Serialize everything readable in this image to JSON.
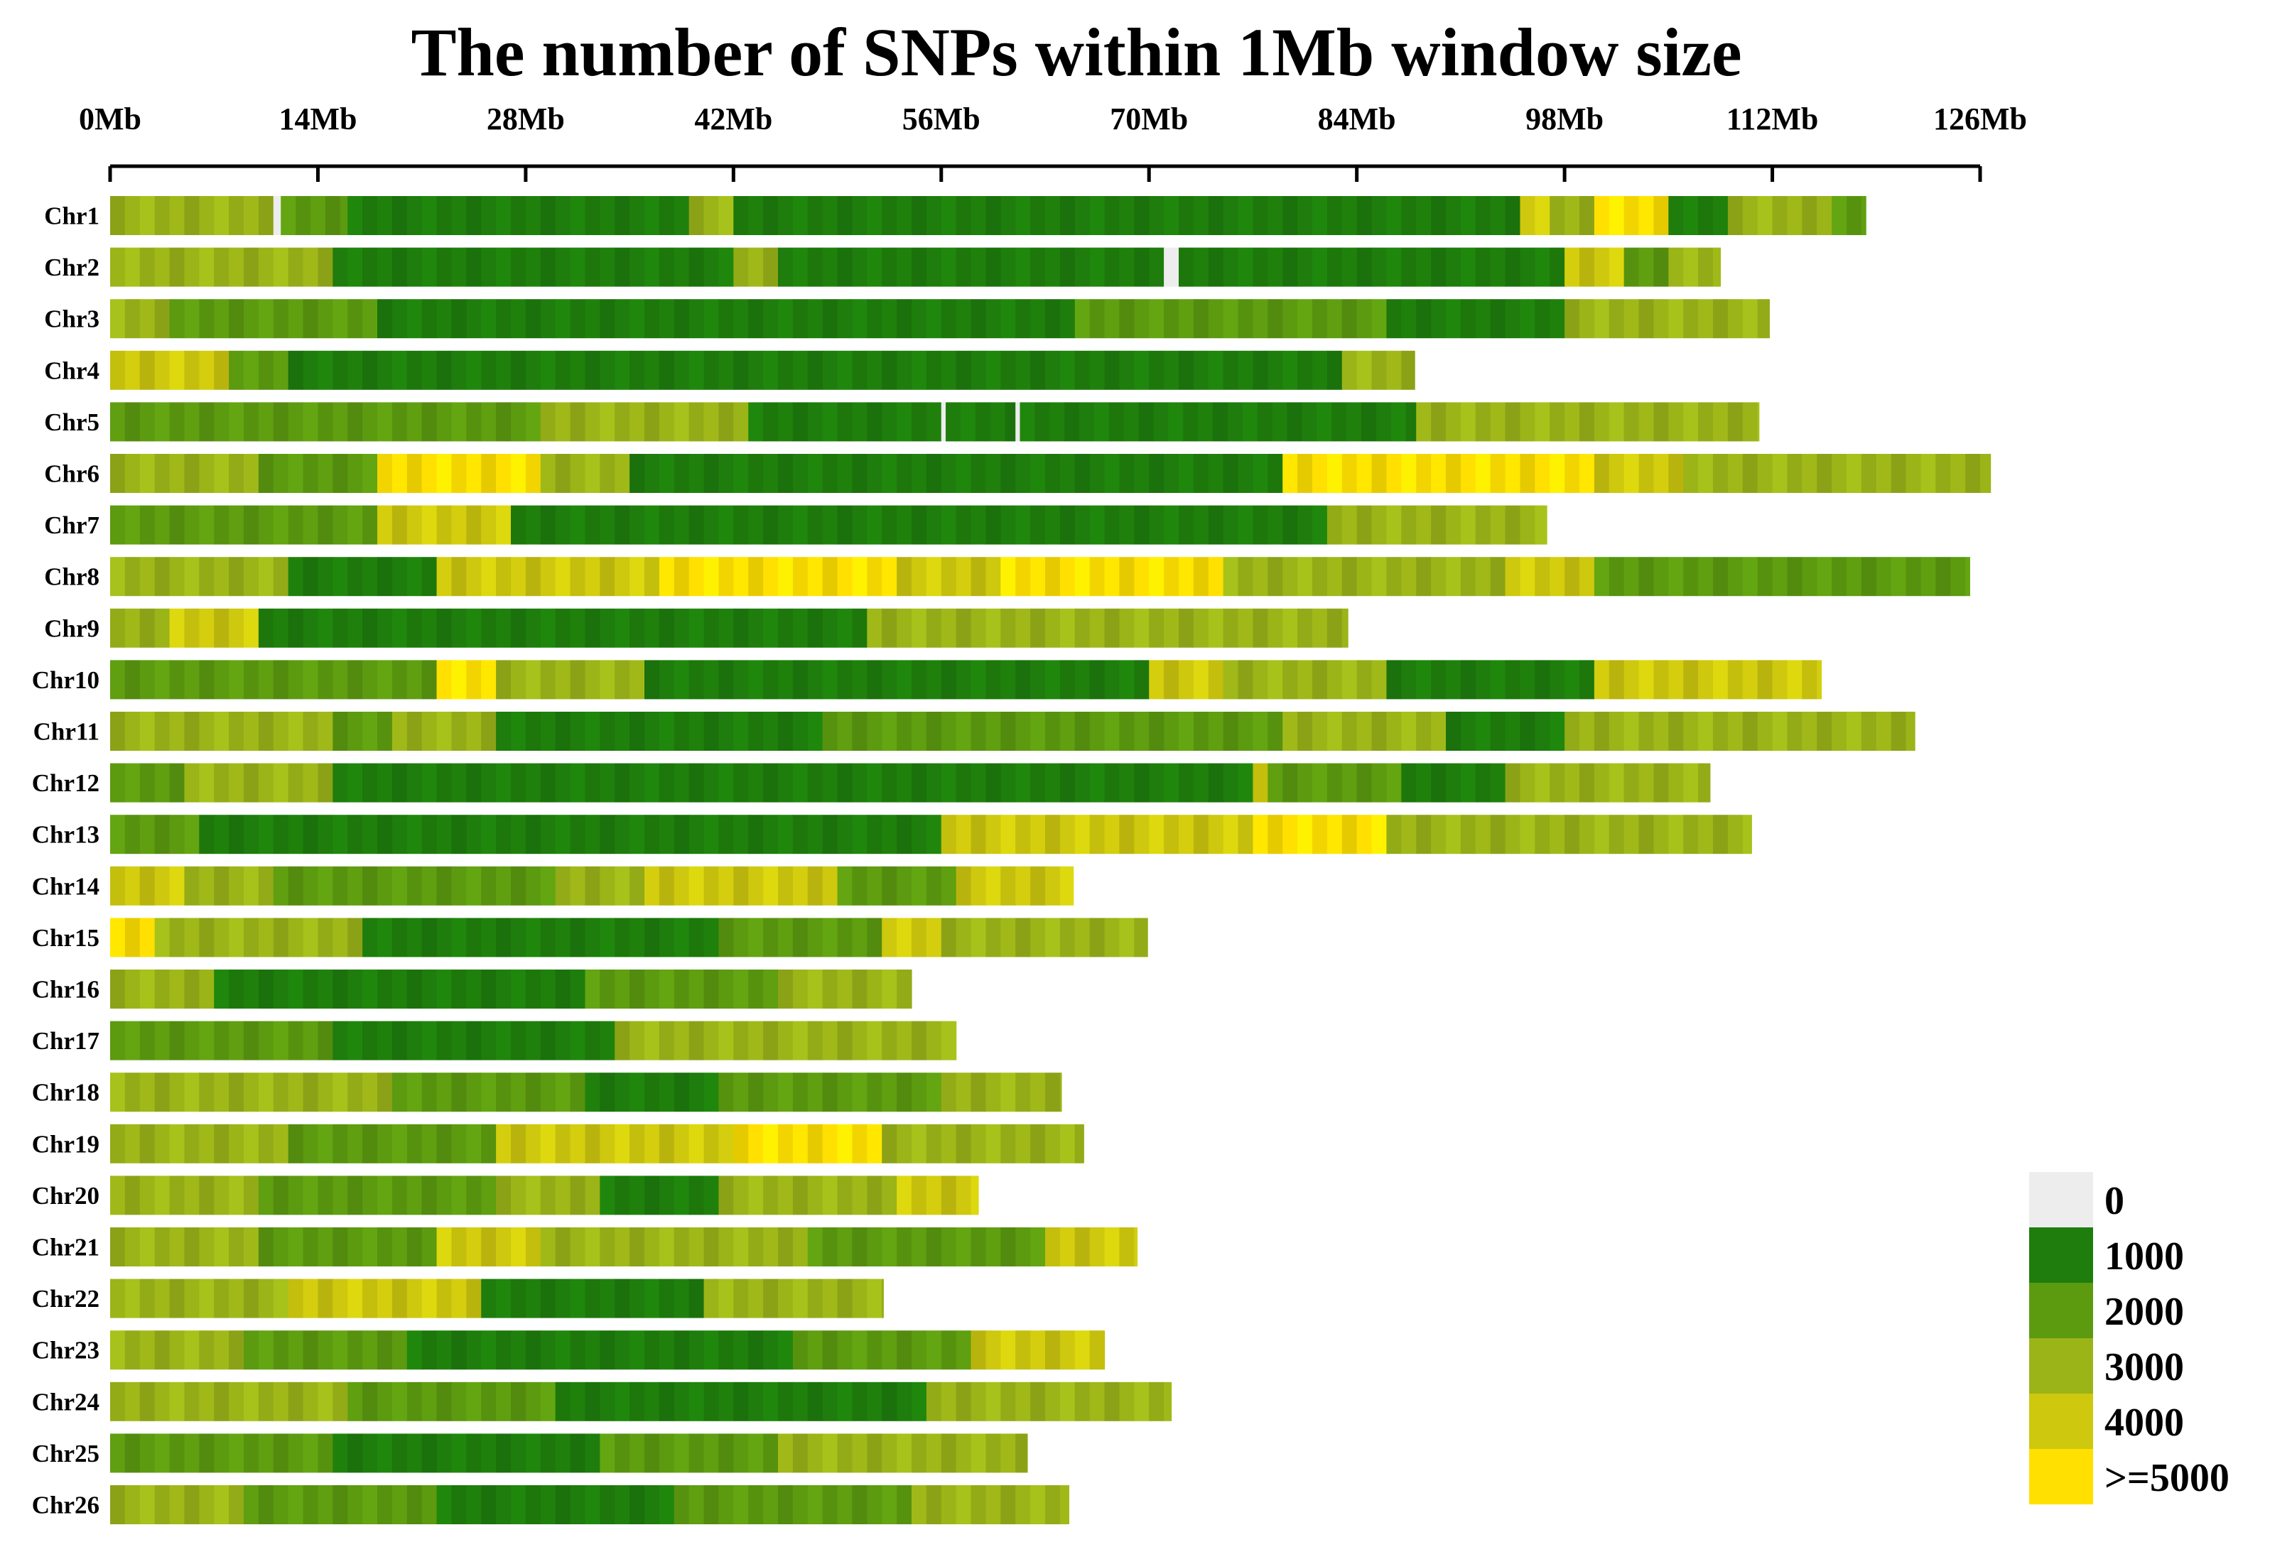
{
  "chart_data": {
    "type": "heatmap",
    "title": "The number of SNPs within 1Mb window size",
    "x_axis": {
      "unit": "Mb",
      "range": [
        0,
        126
      ],
      "ticks": [
        0,
        14,
        28,
        42,
        56,
        70,
        84,
        98,
        112,
        126
      ],
      "tick_labels": [
        "0Mb",
        "14Mb",
        "28Mb",
        "42Mb",
        "56Mb",
        "70Mb",
        "84Mb",
        "98Mb",
        "112Mb",
        "126Mb"
      ]
    },
    "window_size_mb": 1,
    "legend": {
      "placement": "bottom-right",
      "entries": [
        {
          "label": "0",
          "color": "#ededed"
        },
        {
          "label": "1000",
          "color": "#1e7d0c"
        },
        {
          "label": "2000",
          "color": "#5c9a10"
        },
        {
          "label": "3000",
          "color": "#9bb418"
        },
        {
          "label": "4000",
          "color": "#cec80e"
        },
        {
          "label": ">=5000",
          "color": "#ffe000"
        }
      ]
    },
    "chromosomes": [
      {
        "name": "Chr1",
        "length_mb": 118.3
      },
      {
        "name": "Chr2",
        "length_mb": 108.5
      },
      {
        "name": "Chr3",
        "length_mb": 111.8
      },
      {
        "name": "Chr4",
        "length_mb": 87.9
      },
      {
        "name": "Chr5",
        "length_mb": 111.1
      },
      {
        "name": "Chr6",
        "length_mb": 126.7
      },
      {
        "name": "Chr7",
        "length_mb": 96.8
      },
      {
        "name": "Chr8",
        "length_mb": 125.3
      },
      {
        "name": "Chr9",
        "length_mb": 83.4
      },
      {
        "name": "Chr10",
        "length_mb": 115.3
      },
      {
        "name": "Chr11",
        "length_mb": 121.6
      },
      {
        "name": "Chr12",
        "length_mb": 107.8
      },
      {
        "name": "Chr13",
        "length_mb": 110.6
      },
      {
        "name": "Chr14",
        "length_mb": 64.9
      },
      {
        "name": "Chr15",
        "length_mb": 69.9
      },
      {
        "name": "Chr16",
        "length_mb": 54.0
      },
      {
        "name": "Chr17",
        "length_mb": 57.0
      },
      {
        "name": "Chr18",
        "length_mb": 64.1
      },
      {
        "name": "Chr19",
        "length_mb": 65.6
      },
      {
        "name": "Chr20",
        "length_mb": 58.5
      },
      {
        "name": "Chr21",
        "length_mb": 69.2
      },
      {
        "name": "Chr22",
        "length_mb": 52.1
      },
      {
        "name": "Chr23",
        "length_mb": 67.0
      },
      {
        "name": "Chr24",
        "length_mb": 71.5
      },
      {
        "name": "Chr25",
        "length_mb": 61.8
      },
      {
        "name": "Chr26",
        "length_mb": 64.6
      }
    ],
    "density_segments": [
      [
        [
          0,
          11,
          3
        ],
        [
          11,
          11.5,
          0
        ],
        [
          11.5,
          16,
          2
        ],
        [
          16,
          27,
          1
        ],
        [
          27,
          39,
          1
        ],
        [
          39,
          42,
          3
        ],
        [
          42,
          95,
          1
        ],
        [
          95,
          97,
          4
        ],
        [
          97,
          100,
          3
        ],
        [
          100,
          105,
          5
        ],
        [
          105,
          109,
          1
        ],
        [
          109,
          116,
          3
        ],
        [
          116,
          118.3,
          2
        ]
      ],
      [
        [
          0,
          15,
          3
        ],
        [
          15,
          42,
          1
        ],
        [
          42,
          45,
          3
        ],
        [
          45,
          71,
          1
        ],
        [
          71,
          72,
          0
        ],
        [
          72,
          98,
          1
        ],
        [
          98,
          102,
          4
        ],
        [
          102,
          105,
          2
        ],
        [
          105,
          108.5,
          3
        ]
      ],
      [
        [
          0,
          4,
          3
        ],
        [
          4,
          18,
          2
        ],
        [
          18,
          65,
          1
        ],
        [
          65,
          86,
          2
        ],
        [
          86,
          98,
          1
        ],
        [
          98,
          111.8,
          3
        ]
      ],
      [
        [
          0,
          8,
          4
        ],
        [
          8,
          12,
          2
        ],
        [
          12,
          66,
          1
        ],
        [
          66,
          83,
          1
        ],
        [
          83,
          87.9,
          3
        ]
      ],
      [
        [
          0,
          29,
          2
        ],
        [
          29,
          43,
          3
        ],
        [
          43,
          56,
          1
        ],
        [
          56,
          56.3,
          0
        ],
        [
          56.3,
          61,
          1
        ],
        [
          61,
          61.3,
          0
        ],
        [
          61.3,
          88,
          1
        ],
        [
          88,
          97,
          3
        ],
        [
          97,
          111.1,
          3
        ]
      ],
      [
        [
          0,
          10,
          3
        ],
        [
          10,
          18,
          2
        ],
        [
          18,
          29,
          5
        ],
        [
          29,
          35,
          3
        ],
        [
          35,
          47,
          1
        ],
        [
          47,
          67,
          1
        ],
        [
          67,
          79,
          1
        ],
        [
          79,
          100,
          5
        ],
        [
          100,
          106,
          4
        ],
        [
          106,
          126.7,
          3
        ]
      ],
      [
        [
          0,
          18,
          2
        ],
        [
          18,
          27,
          4
        ],
        [
          27,
          44,
          1
        ],
        [
          44,
          82,
          1
        ],
        [
          82,
          96.8,
          3
        ]
      ],
      [
        [
          0,
          12,
          3
        ],
        [
          12,
          22,
          1
        ],
        [
          22,
          37,
          4
        ],
        [
          37,
          53,
          5
        ],
        [
          53,
          60,
          4
        ],
        [
          60,
          70,
          5
        ],
        [
          70,
          75,
          5
        ],
        [
          75,
          94,
          3
        ],
        [
          94,
          100,
          4
        ],
        [
          100,
          125.3,
          2
        ]
      ],
      [
        [
          0,
          4,
          3
        ],
        [
          4,
          10,
          4
        ],
        [
          10,
          51,
          1
        ],
        [
          51,
          69,
          3
        ],
        [
          69,
          83.4,
          3
        ]
      ],
      [
        [
          0,
          22,
          2
        ],
        [
          22,
          26,
          5
        ],
        [
          26,
          36,
          3
        ],
        [
          36,
          70,
          1
        ],
        [
          70,
          75,
          4
        ],
        [
          75,
          86,
          3
        ],
        [
          86,
          100,
          1
        ],
        [
          100,
          115.3,
          4
        ]
      ],
      [
        [
          0,
          15,
          3
        ],
        [
          15,
          19,
          2
        ],
        [
          19,
          26,
          3
        ],
        [
          26,
          48,
          1
        ],
        [
          48,
          66,
          2
        ],
        [
          66,
          79,
          2
        ],
        [
          79,
          90,
          3
        ],
        [
          90,
          98,
          1
        ],
        [
          98,
          121.6,
          3
        ]
      ],
      [
        [
          0,
          5,
          2
        ],
        [
          5,
          15,
          3
        ],
        [
          15,
          77,
          1
        ],
        [
          77,
          78,
          4
        ],
        [
          78,
          87,
          2
        ],
        [
          87,
          94,
          1
        ],
        [
          94,
          107.8,
          3
        ]
      ],
      [
        [
          0,
          6,
          2
        ],
        [
          6,
          16,
          1
        ],
        [
          16,
          56,
          1
        ],
        [
          56,
          77,
          4
        ],
        [
          77,
          86,
          5
        ],
        [
          86,
          110.6,
          3
        ]
      ],
      [
        [
          0,
          5,
          4
        ],
        [
          5,
          11,
          3
        ],
        [
          11,
          30,
          2
        ],
        [
          30,
          36,
          3
        ],
        [
          36,
          49,
          4
        ],
        [
          49,
          57,
          2
        ],
        [
          57,
          64.9,
          4
        ]
      ],
      [
        [
          0,
          3,
          5
        ],
        [
          3,
          17,
          3
        ],
        [
          17,
          41,
          1
        ],
        [
          41,
          52,
          2
        ],
        [
          52,
          56,
          4
        ],
        [
          56,
          69.9,
          3
        ]
      ],
      [
        [
          0,
          7,
          3
        ],
        [
          7,
          32,
          1
        ],
        [
          32,
          45,
          2
        ],
        [
          45,
          54,
          3
        ]
      ],
      [
        [
          0,
          15,
          2
        ],
        [
          15,
          34,
          1
        ],
        [
          34,
          44,
          3
        ],
        [
          44,
          57,
          3
        ]
      ],
      [
        [
          0,
          5,
          3
        ],
        [
          5,
          19,
          3
        ],
        [
          19,
          32,
          2
        ],
        [
          32,
          41,
          1
        ],
        [
          41,
          56,
          2
        ],
        [
          56,
          64.1,
          3
        ]
      ],
      [
        [
          0,
          12,
          3
        ],
        [
          12,
          26,
          2
        ],
        [
          26,
          42,
          4
        ],
        [
          42,
          52,
          5
        ],
        [
          52,
          65.6,
          3
        ]
      ],
      [
        [
          0,
          10,
          3
        ],
        [
          10,
          26,
          2
        ],
        [
          26,
          33,
          3
        ],
        [
          33,
          41,
          1
        ],
        [
          41,
          53,
          3
        ],
        [
          53,
          58.5,
          4
        ]
      ],
      [
        [
          0,
          10,
          3
        ],
        [
          10,
          22,
          2
        ],
        [
          22,
          29,
          4
        ],
        [
          29,
          47,
          3
        ],
        [
          47,
          63,
          2
        ],
        [
          63,
          69.2,
          4
        ]
      ],
      [
        [
          0,
          12,
          3
        ],
        [
          12,
          25,
          4
        ],
        [
          25,
          40,
          1
        ],
        [
          40,
          52.1,
          3
        ]
      ],
      [
        [
          0,
          9,
          3
        ],
        [
          9,
          20,
          2
        ],
        [
          20,
          27,
          1
        ],
        [
          27,
          46,
          1
        ],
        [
          46,
          58,
          2
        ],
        [
          58,
          67,
          4
        ]
      ],
      [
        [
          0,
          16,
          3
        ],
        [
          16,
          30,
          2
        ],
        [
          30,
          55,
          1
        ],
        [
          55,
          62,
          3
        ],
        [
          62,
          71.5,
          3
        ]
      ],
      [
        [
          0,
          15,
          2
        ],
        [
          15,
          33,
          1
        ],
        [
          33,
          45,
          2
        ],
        [
          45,
          61.8,
          3
        ]
      ],
      [
        [
          0,
          9,
          3
        ],
        [
          9,
          22,
          2
        ],
        [
          22,
          38,
          1
        ],
        [
          38,
          54,
          2
        ],
        [
          54,
          64.6,
          3
        ]
      ]
    ]
  }
}
